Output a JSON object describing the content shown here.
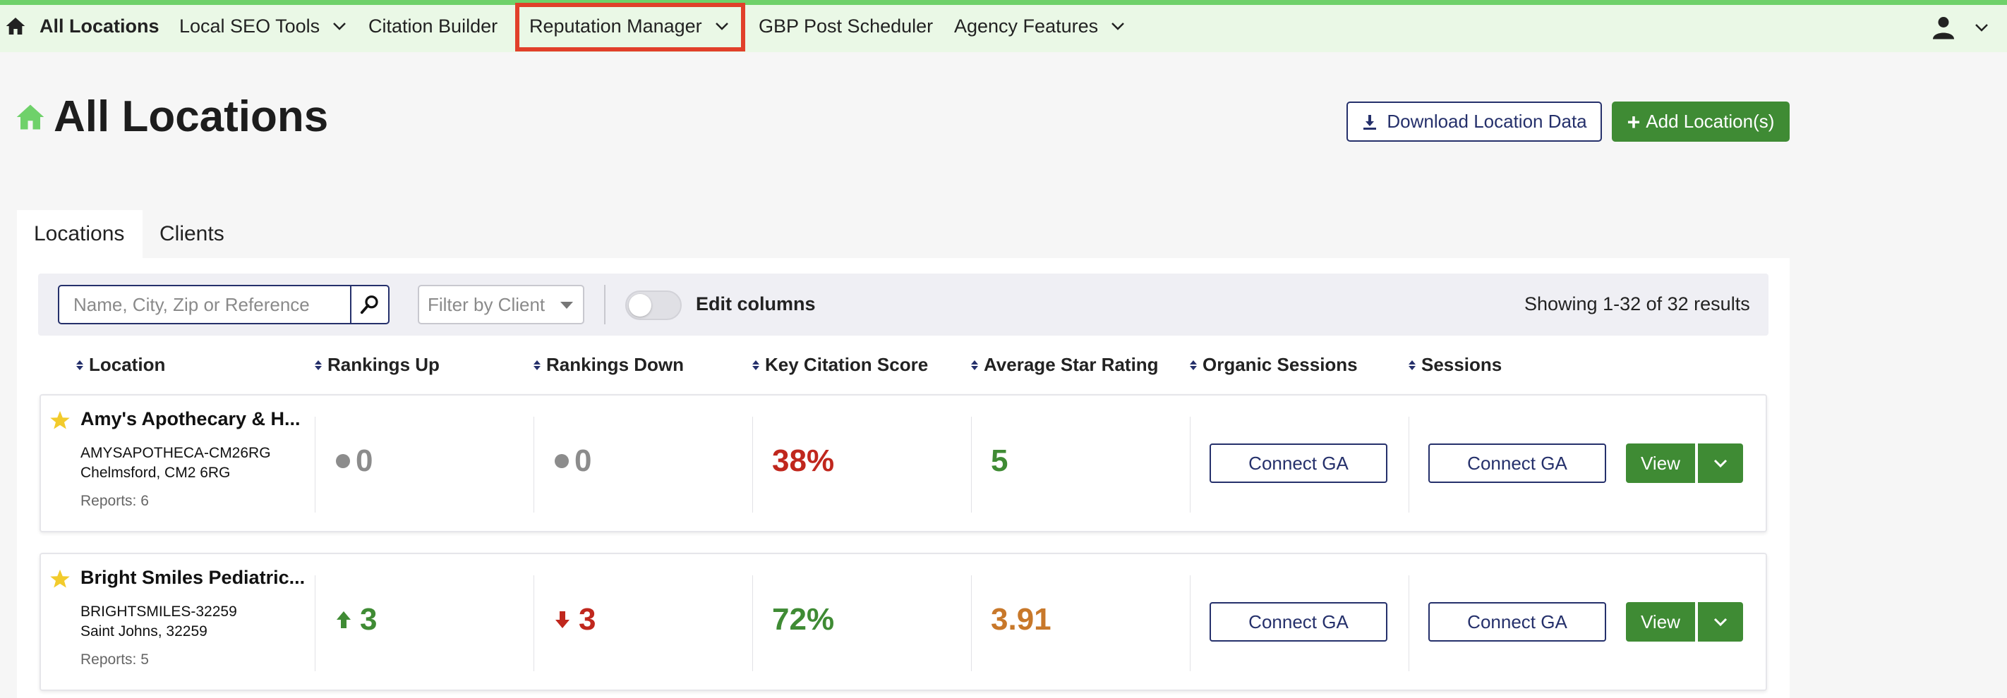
{
  "nav": {
    "home_label": "All Locations",
    "items": [
      {
        "label": "Local SEO Tools",
        "has_dropdown": true
      },
      {
        "label": "Citation Builder",
        "has_dropdown": false
      },
      {
        "label": "Reputation Manager",
        "has_dropdown": true,
        "highlighted": true
      },
      {
        "label": "GBP Post Scheduler",
        "has_dropdown": false
      },
      {
        "label": "Agency Features",
        "has_dropdown": true
      }
    ],
    "user_icon": "user-icon",
    "colors": {
      "bar_bg": "#eaf8e6",
      "bar_accent": "#6fd16a",
      "highlight": "#e1402a"
    }
  },
  "header": {
    "title": "All Locations",
    "download_label": "Download Location Data",
    "add_label": "Add Location(s)"
  },
  "tabs": [
    {
      "label": "Locations",
      "active": true
    },
    {
      "label": "Clients",
      "active": false
    }
  ],
  "filters": {
    "search_placeholder": "Name, City, Zip or Reference",
    "client_placeholder": "Filter by Client",
    "edit_columns_label": "Edit columns",
    "edit_columns_on": false,
    "results_text": "Showing 1-32 of 32 results"
  },
  "columns": [
    "Location",
    "Rankings Up",
    "Rankings Down",
    "Key Citation Score",
    "Average Star Rating",
    "Organic Sessions",
    "Sessions"
  ],
  "rows": [
    {
      "name": "Amy's Apothecary & H...",
      "reference": "AMYSAPOTHECA-CM26RG",
      "city": "Chelmsford, CM2 6RG",
      "reports": "Reports: 6",
      "starred": true,
      "rankings_up": "0",
      "rankings_up_trend": "none",
      "rankings_down": "0",
      "rankings_down_trend": "none",
      "citation_score": "38%",
      "citation_color": "#c0271d",
      "star_rating": "5",
      "star_color": "#3f8b34",
      "organic_label": "Connect GA",
      "sessions_label": "Connect GA",
      "view_label": "View"
    },
    {
      "name": "Bright Smiles Pediatric...",
      "reference": "BRIGHTSMILES-32259",
      "city": "Saint Johns, 32259",
      "reports": "Reports: 5",
      "starred": true,
      "rankings_up": "3",
      "rankings_up_trend": "up",
      "rankings_down": "3",
      "rankings_down_trend": "down",
      "citation_score": "72%",
      "citation_color": "#3f8b34",
      "star_rating": "3.91",
      "star_color": "#c8782a",
      "organic_label": "Connect GA",
      "sessions_label": "Connect GA",
      "view_label": "View"
    }
  ]
}
